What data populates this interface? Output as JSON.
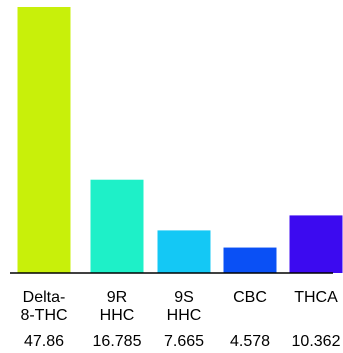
{
  "chart_data": {
    "type": "bar",
    "title": "",
    "xlabel": "",
    "ylabel": "",
    "ylim": [
      0,
      47.86
    ],
    "grid": false,
    "legend": "none",
    "categories": [
      {
        "label_lines": [
          "Delta-",
          "8-THC"
        ]
      },
      {
        "label_lines": [
          "9R",
          "HHC"
        ]
      },
      {
        "label_lines": [
          "9S",
          "HHC"
        ]
      },
      {
        "label_lines": [
          "CBC"
        ]
      },
      {
        "label_lines": [
          "THCA"
        ]
      }
    ],
    "values": [
      47.86,
      16.785,
      7.665,
      4.578,
      10.362
    ],
    "value_labels": [
      "47.86",
      "16.785",
      "7.665",
      "4.578",
      "10.362"
    ],
    "colors": [
      "#c8f00a",
      "#1ef0c8",
      "#14c8f5",
      "#0a50f5",
      "#3c0af0"
    ]
  }
}
